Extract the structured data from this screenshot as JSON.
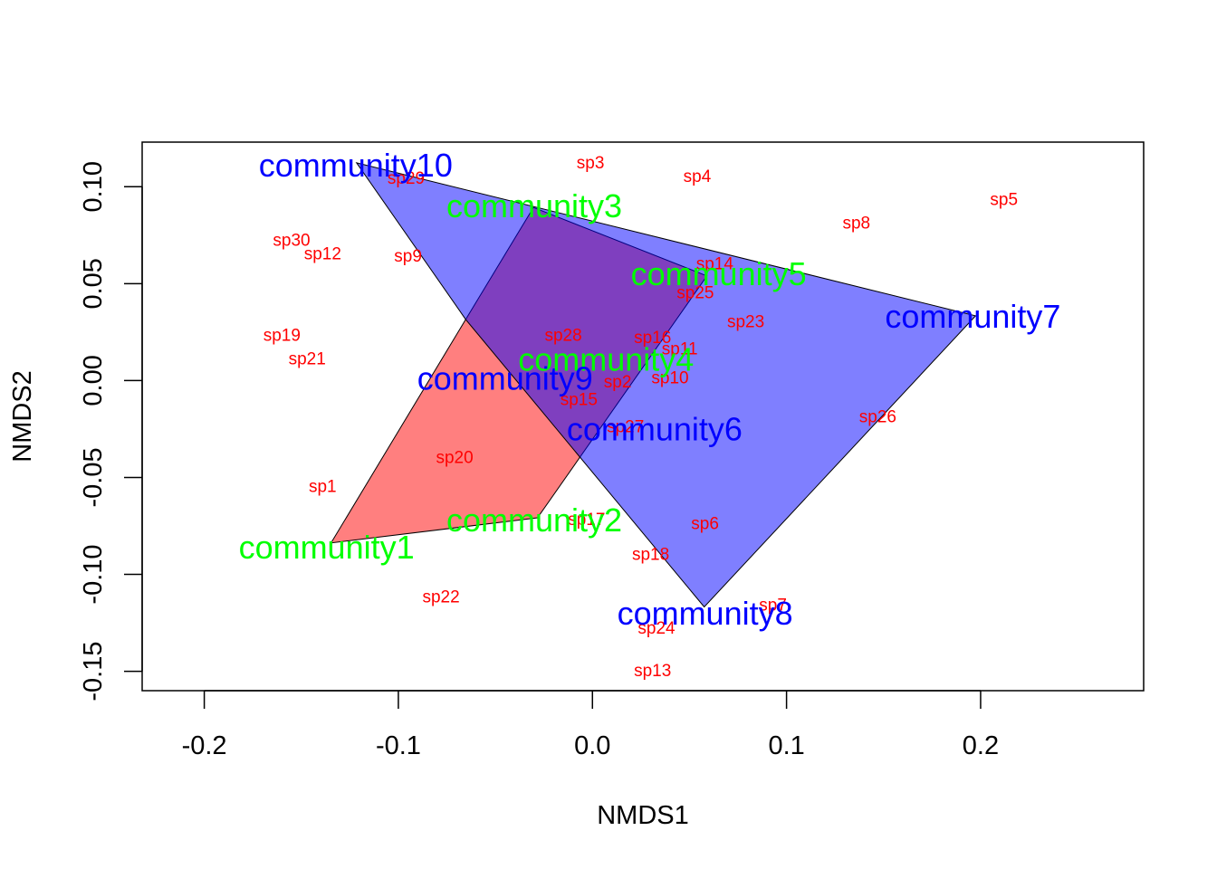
{
  "chart_data": {
    "type": "scatter",
    "title": "",
    "xlabel": "NMDS1",
    "ylabel": "NMDS2",
    "xlim": [
      -0.232,
      0.284
    ],
    "ylim": [
      -0.16,
      0.123
    ],
    "x_ticks": [
      -0.2,
      -0.1,
      0.0,
      0.1,
      0.2
    ],
    "x_tick_labels": [
      "-0.2",
      "-0.1",
      "0.0",
      "0.1",
      "0.2"
    ],
    "y_ticks": [
      -0.15,
      -0.1,
      -0.05,
      0.0,
      0.05,
      0.1
    ],
    "y_tick_labels": [
      "-0.15",
      "-0.10",
      "-0.05",
      "0.00",
      "0.05",
      "0.10"
    ],
    "grid": false,
    "colors": {
      "species": "#ff0000",
      "group_a": "#00ff00",
      "group_b": "#0000ff",
      "hull_a_fill": "rgba(255,0,0,0.5)",
      "hull_b_fill": "rgba(0,0,255,0.5)",
      "hull_stroke": "#000000"
    },
    "hulls": [
      {
        "group": "a",
        "points": [
          [
            -0.1347,
            -0.0838
          ],
          [
            -0.0283,
            -0.0708
          ],
          [
            0.059,
            0.054
          ],
          [
            -0.0304,
            0.0893
          ],
          [
            -0.0653,
            0.0315
          ]
        ]
      },
      {
        "group": "b",
        "points": [
          [
            -0.1215,
            0.1123
          ],
          [
            0.1974,
            0.0334
          ],
          [
            0.0576,
            -0.1168
          ],
          [
            -0.0653,
            0.0315
          ]
        ]
      }
    ],
    "species": [
      {
        "label": "sp1",
        "x": -0.139,
        "y": -0.055
      },
      {
        "label": "sp2",
        "x": 0.013,
        "y": -0.001
      },
      {
        "label": "sp3",
        "x": -0.001,
        "y": 0.112
      },
      {
        "label": "sp4",
        "x": 0.054,
        "y": 0.105
      },
      {
        "label": "sp5",
        "x": 0.212,
        "y": 0.093
      },
      {
        "label": "sp6",
        "x": 0.058,
        "y": -0.074
      },
      {
        "label": "sp7",
        "x": 0.093,
        "y": -0.116
      },
      {
        "label": "sp8",
        "x": 0.136,
        "y": 0.081
      },
      {
        "label": "sp9",
        "x": -0.095,
        "y": 0.064
      },
      {
        "label": "sp10",
        "x": 0.04,
        "y": 0.001
      },
      {
        "label": "sp11",
        "x": 0.045,
        "y": 0.016
      },
      {
        "label": "sp12",
        "x": -0.139,
        "y": 0.065
      },
      {
        "label": "sp13",
        "x": 0.031,
        "y": -0.15
      },
      {
        "label": "sp14",
        "x": 0.063,
        "y": 0.06
      },
      {
        "label": "sp15",
        "x": -0.007,
        "y": -0.01
      },
      {
        "label": "sp16",
        "x": 0.031,
        "y": 0.022
      },
      {
        "label": "sp17",
        "x": -0.003,
        "y": -0.072
      },
      {
        "label": "sp18",
        "x": 0.03,
        "y": -0.09
      },
      {
        "label": "sp19",
        "x": -0.16,
        "y": 0.023
      },
      {
        "label": "sp20",
        "x": -0.071,
        "y": -0.04
      },
      {
        "label": "sp21",
        "x": -0.147,
        "y": 0.011
      },
      {
        "label": "sp22",
        "x": -0.078,
        "y": -0.112
      },
      {
        "label": "sp23",
        "x": 0.079,
        "y": 0.03
      },
      {
        "label": "sp24",
        "x": 0.033,
        "y": -0.128
      },
      {
        "label": "sp25",
        "x": 0.053,
        "y": 0.045
      },
      {
        "label": "sp26",
        "x": 0.147,
        "y": -0.019
      },
      {
        "label": "sp27",
        "x": 0.017,
        "y": -0.024
      },
      {
        "label": "sp28",
        "x": -0.015,
        "y": 0.023
      },
      {
        "label": "sp29",
        "x": -0.096,
        "y": 0.104
      },
      {
        "label": "sp30",
        "x": -0.155,
        "y": 0.072
      }
    ],
    "communities": [
      {
        "label": "community1",
        "x": -0.137,
        "y": -0.086,
        "group": "a"
      },
      {
        "label": "community2",
        "x": -0.03,
        "y": -0.072,
        "group": "a"
      },
      {
        "label": "community3",
        "x": -0.03,
        "y": 0.09,
        "group": "a"
      },
      {
        "label": "community4",
        "x": 0.007,
        "y": 0.011,
        "group": "a"
      },
      {
        "label": "community5",
        "x": 0.065,
        "y": 0.055,
        "group": "a"
      },
      {
        "label": "community6",
        "x": 0.032,
        "y": -0.025,
        "group": "b"
      },
      {
        "label": "community7",
        "x": 0.196,
        "y": 0.033,
        "group": "b"
      },
      {
        "label": "community8",
        "x": 0.058,
        "y": -0.12,
        "group": "b"
      },
      {
        "label": "community9",
        "x": -0.045,
        "y": 0.001,
        "group": "b"
      },
      {
        "label": "community10",
        "x": -0.122,
        "y": 0.111,
        "group": "b"
      }
    ]
  }
}
